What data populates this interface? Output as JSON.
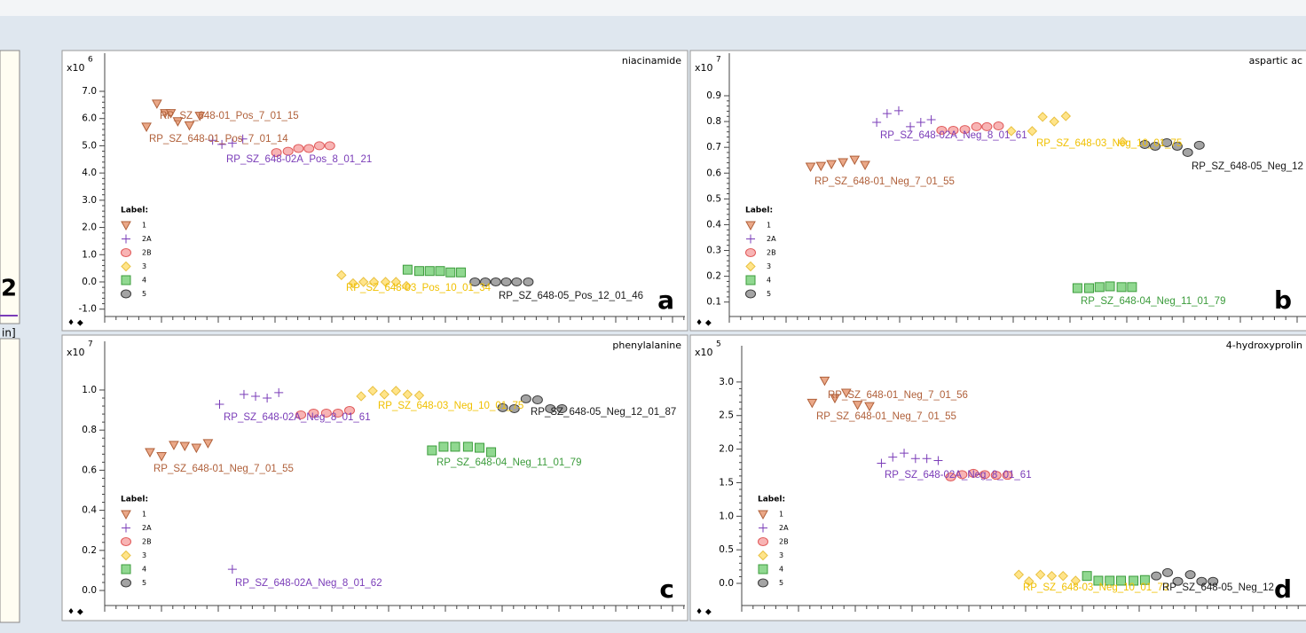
{
  "left_fragment": {
    "labels": [
      "2",
      "in]"
    ]
  },
  "chart_data": [
    {
      "type": "scatter",
      "title": "niacinamide",
      "y_exponent": {
        "base": "x10",
        "power": "6"
      },
      "panel_label": "a",
      "legend": {
        "title": "Label:",
        "position": "lower left"
      },
      "xlim": [
        0,
        50
      ],
      "ylim": [
        -1.27,
        8.4
      ],
      "yticks": [
        {
          "value": -1,
          "label": "-1.0"
        },
        {
          "value": 0,
          "label": "0.0"
        },
        {
          "value": 1,
          "label": "1.0"
        },
        {
          "value": 2,
          "label": "2.0"
        },
        {
          "value": 3,
          "label": "3.0"
        },
        {
          "value": 4,
          "label": "4.0"
        },
        {
          "value": 5,
          "label": "5.0"
        },
        {
          "value": 6,
          "label": "6.0"
        },
        {
          "value": 7,
          "label": "7.0"
        }
      ],
      "series": [
        {
          "name": "1",
          "marker": "triangle-down",
          "color": "#b0603a",
          "fill": "#eaa888",
          "x": [
            3.6,
            4.5,
            5.2,
            5.7,
            6.3,
            7.3,
            8.2
          ],
          "values": [
            5.7,
            6.55,
            6.2,
            6.2,
            5.9,
            5.75,
            6.1
          ]
        },
        {
          "name": "2A",
          "marker": "plus",
          "color": "#7a3cb8",
          "fill": "none",
          "x": [
            9.3,
            10.1,
            11.0,
            11.9
          ],
          "values": [
            5.2,
            5.05,
            5.1,
            5.25
          ]
        },
        {
          "name": "2B",
          "marker": "circle",
          "color": "#e05a5a",
          "fill": "#f8b4b4",
          "x": [
            14.8,
            15.8,
            16.7,
            17.6,
            18.5,
            19.4
          ],
          "values": [
            4.75,
            4.8,
            4.9,
            4.9,
            5.0,
            5.0
          ]
        },
        {
          "name": "3",
          "marker": "diamond",
          "color": "#e8c040",
          "fill": "#ffe48a",
          "x": [
            20.4,
            21.4,
            22.3,
            23.2,
            24.2,
            25.1,
            26.0
          ],
          "values": [
            0.25,
            -0.05,
            0.0,
            0.0,
            0.0,
            0.0,
            -0.15
          ]
        },
        {
          "name": "4",
          "marker": "square",
          "color": "#3c9c3c",
          "fill": "#90d890",
          "x": [
            26.1,
            27.1,
            28.0,
            28.9,
            29.8,
            30.7
          ],
          "values": [
            0.45,
            0.4,
            0.4,
            0.4,
            0.35,
            0.35
          ]
        },
        {
          "name": "5",
          "marker": "circle",
          "color": "#3a3a3a",
          "fill": "#a4a4a4",
          "x": [
            31.9,
            32.8,
            33.7,
            34.6,
            35.5,
            36.5
          ],
          "values": [
            0,
            0,
            0,
            0,
            0,
            0
          ]
        }
      ],
      "annotations": [
        "RP_SZ_648-01_Pos_7_01_15",
        "RP_SZ_648-01_Pos_7_01_14",
        "RP_SZ_648-02A_Pos_8_01_21",
        "RP_SZ_648-03_Pos_10_01_34",
        "RP_SZ_648-05_Pos_12_01_46"
      ]
    },
    {
      "type": "scatter",
      "title": "aspartic ac",
      "y_exponent": {
        "base": "x10",
        "power": "7"
      },
      "panel_label": "b",
      "legend": {
        "title": "Label:",
        "position": "lower left"
      },
      "xlim": [
        0,
        50
      ],
      "ylim": [
        0.044,
        1.065
      ],
      "yticks": [
        0.1,
        0.2,
        0.3,
        0.4,
        0.5,
        0.6,
        0.7,
        0.8,
        0.9
      ],
      "series": [
        {
          "name": "1",
          "marker": "triangle-down",
          "color": "#b0603a",
          "fill": "#eaa888",
          "x": [
            7.0,
            7.9,
            8.8,
            9.8,
            10.8,
            11.7
          ],
          "values": [
            0.625,
            0.628,
            0.635,
            0.642,
            0.652,
            0.632
          ]
        },
        {
          "name": "2A",
          "marker": "plus",
          "color": "#7a3cb8",
          "fill": "none",
          "x": [
            12.7,
            13.6,
            14.6,
            15.6,
            16.5,
            17.4
          ],
          "values": [
            0.797,
            0.831,
            0.842,
            0.78,
            0.797,
            0.807
          ]
        },
        {
          "name": "2B",
          "marker": "circle",
          "color": "#e05a5a",
          "fill": "#f8b4b4",
          "x": [
            18.3,
            19.3,
            20.3,
            21.3,
            22.2,
            23.2
          ],
          "values": [
            0.766,
            0.766,
            0.769,
            0.78,
            0.78,
            0.783
          ]
        },
        {
          "name": "3",
          "marker": "diamond",
          "color": "#e8c040",
          "fill": "#ffe48a",
          "x": [
            24.3,
            26.1,
            27.0,
            28.0,
            29.0,
            33.9
          ],
          "values": [
            0.763,
            0.763,
            0.818,
            0.8,
            0.821,
            0.721
          ]
        },
        {
          "name": "4",
          "marker": "square",
          "color": "#3c9c3c",
          "fill": "#90d890",
          "x": [
            30.0,
            31.0,
            31.9,
            32.8,
            33.8,
            34.7
          ],
          "values": [
            0.154,
            0.154,
            0.158,
            0.161,
            0.158,
            0.158
          ]
        },
        {
          "name": "5",
          "marker": "circle",
          "color": "#3a3a3a",
          "fill": "#a4a4a4",
          "x": [
            35.8,
            36.7,
            37.7,
            38.6,
            39.5,
            40.5
          ],
          "values": [
            0.711,
            0.704,
            0.718,
            0.704,
            0.68,
            0.708
          ]
        }
      ],
      "annotations": [
        "RP_SZ_648-02A_Neg_8_01_61",
        "RP_SZ_648-03_Neg_10_01_75",
        "RP_SZ_648-01_Neg_7_01_55",
        "RP_SZ_648-05_Neg_12",
        "RP_SZ_648-04_Neg_11_01_79"
      ]
    },
    {
      "type": "scatter",
      "title": "phenylalanine",
      "y_exponent": {
        "base": "x10",
        "power": "7"
      },
      "panel_label": "c",
      "legend": {
        "title": "Label:",
        "position": "lower left"
      },
      "xlim": [
        0,
        50
      ],
      "ylim": [
        -0.075,
        1.243
      ],
      "yticks": [
        {
          "value": 0,
          "label": "0.0"
        },
        0.2,
        0.4,
        0.6,
        0.8,
        {
          "value": 1,
          "label": "1.0"
        }
      ],
      "series": [
        {
          "name": "1",
          "marker": "triangle-down",
          "color": "#b0603a",
          "fill": "#eaa888",
          "x": [
            3.9,
            4.9,
            5.96,
            6.9,
            7.9,
            8.9
          ],
          "values": [
            0.69,
            0.67,
            0.726,
            0.721,
            0.712,
            0.735
          ]
        },
        {
          "name": "2A",
          "marker": "plus",
          "color": "#7a3cb8",
          "fill": "none",
          "x": [
            9.9,
            12.0,
            13.0,
            14.0,
            15.0,
            11.0
          ],
          "values": [
            0.929,
            0.978,
            0.969,
            0.96,
            0.987,
            0.106
          ]
        },
        {
          "name": "2B",
          "marker": "circle",
          "color": "#e05a5a",
          "fill": "#f8b4b4",
          "x": [
            16.9,
            18.0,
            19.1,
            20.1,
            21.1
          ],
          "values": [
            0.876,
            0.885,
            0.885,
            0.885,
            0.898
          ]
        },
        {
          "name": "3",
          "marker": "diamond",
          "color": "#e8c040",
          "fill": "#ffe48a",
          "x": [
            22.1,
            23.1,
            24.1,
            25.1,
            26.1,
            27.1
          ],
          "values": [
            0.969,
            0.996,
            0.978,
            0.996,
            0.978,
            0.973
          ]
        },
        {
          "name": "4",
          "marker": "square",
          "color": "#3c9c3c",
          "fill": "#90d890",
          "x": [
            28.2,
            29.2,
            30.2,
            31.3,
            32.3,
            33.3
          ],
          "values": [
            0.699,
            0.717,
            0.717,
            0.717,
            0.712,
            0.69
          ]
        },
        {
          "name": "5",
          "marker": "circle",
          "color": "#3a3a3a",
          "fill": "#a4a4a4",
          "x": [
            34.3,
            35.3,
            36.3,
            37.3,
            38.4,
            39.4
          ],
          "values": [
            0.912,
            0.907,
            0.956,
            0.951,
            0.907,
            0.907
          ]
        }
      ],
      "annotations": [
        "RP_SZ_648-02A_Neg_8_01_61",
        "RP_SZ_648-03_Neg_10_01_75",
        "RP_SZ_648-05_Neg_12_01_87",
        "RP_SZ_648-01_Neg_7_01_55",
        "RP_SZ_648-04_Neg_11_01_79",
        "RP_SZ_648-02A_Neg_8_01_62"
      ]
    },
    {
      "type": "scatter",
      "title": "4-hydroxyprolin",
      "y_exponent": {
        "base": "x10",
        "power": "5"
      },
      "panel_label": "d",
      "legend": {
        "title": "Label:",
        "position": "lower left"
      },
      "xlim": [
        0,
        50
      ],
      "ylim": [
        -0.33,
        3.54
      ],
      "yticks": [
        {
          "value": 0,
          "label": "0.0"
        },
        0.5,
        {
          "value": 1,
          "label": "1.0"
        },
        1.5,
        {
          "value": 2,
          "label": "2.0"
        },
        2.5,
        {
          "value": 3,
          "label": "3.0"
        }
      ],
      "series": [
        {
          "name": "1",
          "marker": "triangle-down",
          "color": "#b0603a",
          "fill": "#eaa888",
          "x": [
            6.2,
            7.3,
            8.2,
            9.2,
            10.2,
            11.25
          ],
          "values": [
            2.69,
            3.02,
            2.76,
            2.84,
            2.66,
            2.64
          ]
        },
        {
          "name": "2A",
          "marker": "plus",
          "color": "#7a3cb8",
          "fill": "none",
          "x": [
            12.3,
            13.3,
            14.3,
            15.3,
            16.3,
            17.3
          ],
          "values": [
            1.79,
            1.88,
            1.94,
            1.86,
            1.86,
            1.83
          ]
        },
        {
          "name": "2B",
          "marker": "circle",
          "color": "#e05a5a",
          "fill": "#f8b4b4",
          "x": [
            18.4,
            19.4,
            20.4,
            21.4,
            22.4,
            23.4
          ],
          "values": [
            1.585,
            1.62,
            1.64,
            1.62,
            1.61,
            1.61
          ]
        },
        {
          "name": "3",
          "marker": "diamond",
          "color": "#e8c040",
          "fill": "#ffe48a",
          "x": [
            24.4,
            25.3,
            26.3,
            27.3,
            28.3,
            29.4
          ],
          "values": [
            0.13,
            0.03,
            0.13,
            0.11,
            0.11,
            0.04
          ]
        },
        {
          "name": "4",
          "marker": "square",
          "color": "#3c9c3c",
          "fill": "#90d890",
          "x": [
            30.4,
            31.4,
            32.4,
            33.4,
            34.5,
            35.5
          ],
          "values": [
            0.11,
            0.04,
            0.04,
            0.04,
            0.04,
            0.05
          ]
        },
        {
          "name": "5",
          "marker": "circle",
          "color": "#3a3a3a",
          "fill": "#a4a4a4",
          "x": [
            36.5,
            37.5,
            38.4,
            39.5,
            40.5,
            41.5
          ],
          "values": [
            0.11,
            0.16,
            0.03,
            0.13,
            0.03,
            0.03
          ]
        }
      ],
      "annotations": [
        "RP_SZ_648-01_Neg_7_01_56",
        "RP_SZ_648-01_Neg_7_01_55",
        "RP_SZ_648-02A_Neg_8_01_61",
        "RP_SZ_648-03_Neg_10_01_73",
        "RP_SZ_648-05_Neg_12"
      ]
    }
  ]
}
